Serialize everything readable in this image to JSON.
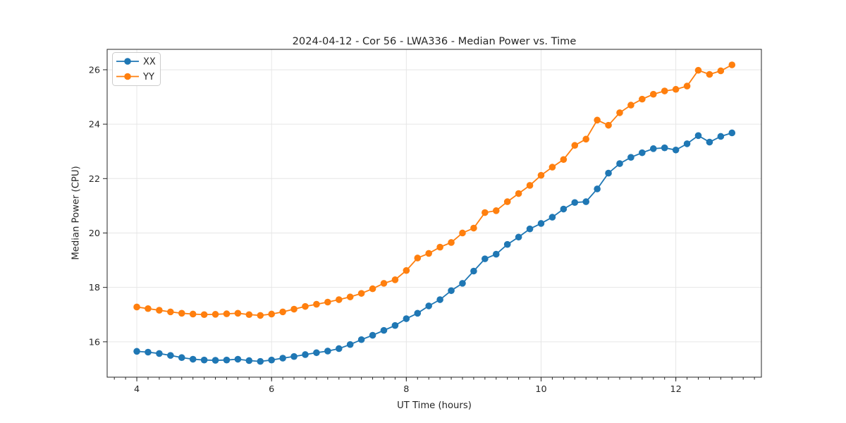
{
  "chart_data": {
    "type": "line",
    "title": "2024-04-12 - Cor 56 - LWA336 - Median Power vs. Time",
    "xlabel": "UT Time (hours)",
    "ylabel": "Median Power (CPU)",
    "xlim": [
      3.56,
      13.27
    ],
    "ylim": [
      14.7,
      26.75
    ],
    "xticks": [
      4,
      6,
      8,
      10,
      12
    ],
    "yticks": [
      16,
      18,
      20,
      22,
      24,
      26
    ],
    "minor_xtick_step_hours": 0.166667,
    "grid": true,
    "legend_position": "upper left",
    "x_start": 4.0,
    "x_step": 0.166667,
    "series": [
      {
        "name": "XX",
        "color": "#1f77b4",
        "values": [
          15.65,
          15.62,
          15.57,
          15.5,
          15.42,
          15.36,
          15.33,
          15.32,
          15.33,
          15.36,
          15.31,
          15.28,
          15.33,
          15.4,
          15.46,
          15.53,
          15.6,
          15.66,
          15.75,
          15.9,
          16.08,
          16.24,
          16.42,
          16.6,
          16.85,
          17.05,
          17.32,
          17.55,
          17.88,
          18.15,
          18.6,
          19.05,
          19.22,
          19.58,
          19.85,
          20.15,
          20.35,
          20.58,
          20.88,
          21.12,
          21.15,
          21.62,
          22.2,
          22.55,
          22.78,
          22.95,
          23.1,
          23.13,
          23.05,
          23.28,
          23.58,
          23.34,
          23.55,
          23.68
        ]
      },
      {
        "name": "YY",
        "color": "#ff7f0e",
        "values": [
          17.28,
          17.22,
          17.16,
          17.1,
          17.05,
          17.02,
          17.0,
          17.01,
          17.03,
          17.05,
          17.0,
          16.97,
          17.02,
          17.1,
          17.2,
          17.3,
          17.38,
          17.46,
          17.55,
          17.65,
          17.78,
          17.95,
          18.15,
          18.28,
          18.62,
          19.08,
          19.25,
          19.48,
          19.65,
          20.0,
          20.18,
          20.75,
          20.82,
          21.15,
          21.45,
          21.75,
          22.12,
          22.42,
          22.7,
          23.22,
          23.45,
          24.15,
          23.96,
          24.42,
          24.7,
          24.92,
          25.1,
          25.22,
          25.28,
          25.4,
          25.98,
          25.83,
          25.96,
          26.18
        ]
      }
    ],
    "style": {
      "grid_color": "#e6e6e6",
      "spine_color": "#262626",
      "legend_border_color": "#cccccc",
      "marker_radius": 4.8,
      "line_width": 1.8
    }
  }
}
